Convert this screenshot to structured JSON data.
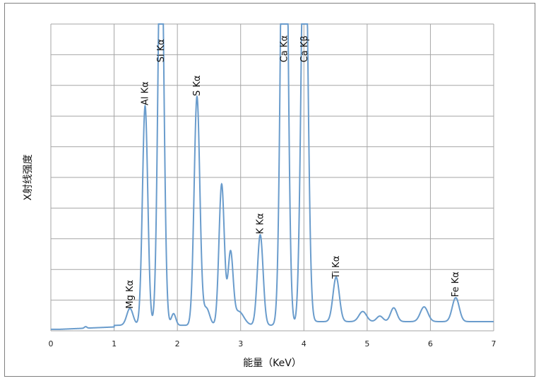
{
  "chart_data": {
    "type": "line",
    "xlabel": "能量（KeV）",
    "ylabel": "X射线强度",
    "xlim": [
      0,
      7
    ],
    "ylim": [
      0,
      10
    ],
    "x_ticks": [
      "0",
      "1",
      "2",
      "3",
      "4",
      "5",
      "6",
      "7"
    ],
    "y_ticks_labeled": false,
    "grid": true,
    "series_color": "#6a9ccc",
    "baseline": 0.05,
    "peaks": [
      {
        "label": "Mg Kα",
        "center": 1.25,
        "height": 0.55,
        "width": 0.05,
        "label_value": 0.72
      },
      {
        "label": "Al Kα",
        "center": 1.49,
        "height": 7.15,
        "width": 0.042,
        "label_value": 7.35
      },
      {
        "label": "Si Kα",
        "center": 1.74,
        "height": 14.0,
        "width": 0.045,
        "label_value": 8.75
      },
      {
        "label": "",
        "center": 1.94,
        "height": 0.38,
        "width": 0.035
      },
      {
        "label": "S Kα",
        "center": 2.31,
        "height": 7.45,
        "width": 0.045,
        "label_value": 7.65
      },
      {
        "label": "",
        "center": 2.46,
        "height": 0.55,
        "width": 0.05
      },
      {
        "label": "",
        "center": 2.7,
        "height": 4.6,
        "width": 0.042
      },
      {
        "label": "",
        "center": 2.84,
        "height": 2.3,
        "width": 0.04
      },
      {
        "label": "",
        "center": 2.97,
        "height": 0.45,
        "width": 0.08
      },
      {
        "label": "K Kα",
        "center": 3.31,
        "height": 2.95,
        "width": 0.045,
        "label_value": 3.15
      },
      {
        "label": "Ca Kα",
        "center": 3.69,
        "height": 20.0,
        "width": 0.05,
        "label_value": 8.75
      },
      {
        "label": "Ca Kβ",
        "center": 4.01,
        "height": 15.0,
        "width": 0.05,
        "label_value": 8.75
      },
      {
        "label": "Ti Kα",
        "center": 4.51,
        "height": 1.45,
        "width": 0.05,
        "label_value": 1.7
      },
      {
        "label": "",
        "center": 4.93,
        "height": 0.33,
        "width": 0.06
      },
      {
        "label": "",
        "center": 5.2,
        "height": 0.18,
        "width": 0.05
      },
      {
        "label": "",
        "center": 5.42,
        "height": 0.45,
        "width": 0.05
      },
      {
        "label": "",
        "center": 5.9,
        "height": 0.48,
        "width": 0.06
      },
      {
        "label": "Fe Kα",
        "center": 6.4,
        "height": 0.78,
        "width": 0.055,
        "label_value": 1.1
      },
      {
        "label": "",
        "center": 0.55,
        "height": 0.05,
        "width": 0.02
      }
    ]
  }
}
